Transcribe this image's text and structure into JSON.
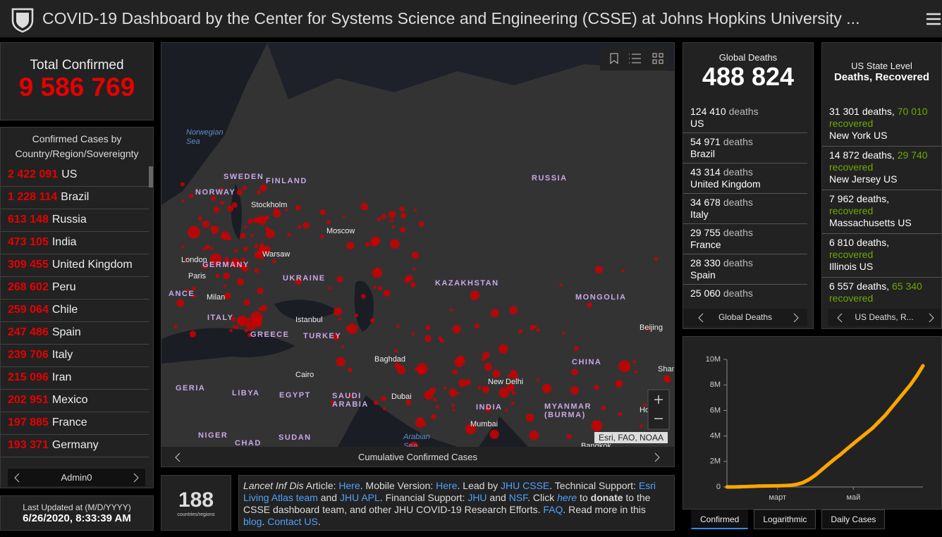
{
  "header": {
    "title": "COVID-19 Dashboard by the Center for Systems Science and Engineering (CSSE) at Johns Hopkins University ..."
  },
  "total": {
    "label": "Total Confirmed",
    "value": "9 586 769"
  },
  "country_list": {
    "title": "Confirmed Cases by Country/Region/Sovereignty",
    "footer": "Admin0",
    "rows": [
      {
        "count": "2 422 091",
        "name": "US"
      },
      {
        "count": "1 228 114",
        "name": "Brazil"
      },
      {
        "count": "613 148",
        "name": "Russia"
      },
      {
        "count": "473 105",
        "name": "India"
      },
      {
        "count": "309 455",
        "name": "United Kingdom"
      },
      {
        "count": "268 602",
        "name": "Peru"
      },
      {
        "count": "259 064",
        "name": "Chile"
      },
      {
        "count": "247 486",
        "name": "Spain"
      },
      {
        "count": "239 706",
        "name": "Italy"
      },
      {
        "count": "215 096",
        "name": "Iran"
      },
      {
        "count": "202 951",
        "name": "Mexico"
      },
      {
        "count": "197 885",
        "name": "France"
      },
      {
        "count": "193 371",
        "name": "Germany"
      }
    ]
  },
  "last_updated": {
    "label": "Last Updated at (M/D/YYYY)",
    "value": "6/26/2020, 8:33:39 AM"
  },
  "map": {
    "caption": "Cumulative Confirmed Cases",
    "attribution": "Esri, FAO, NOAA",
    "labels": [
      "Norwegian",
      "Sea",
      "SWEDEN",
      "FINLAND",
      "NORWAY",
      "RUSSIA",
      "Stockholm",
      "Moscow",
      "Warsaw",
      "London",
      "Paris",
      "GERMANY",
      "UKRAINE",
      "KAZAKHSTAN",
      "MONGOLIA",
      "Milan",
      "ITALY",
      "Istanbul",
      "GREECE",
      "TURKEY",
      "Baghdad",
      "Cairo",
      "LIBYA",
      "EGYPT",
      "SAUDI",
      "ARABIA",
      "Dubai",
      "New Delhi",
      "INDIA",
      "CHINA",
      "Beijing",
      "Shanghai",
      "Hong Ko",
      "MYANMAR",
      "(BURMA)",
      "Mumbai",
      "Bangkok",
      "Arabian",
      "Sea",
      "NIGER",
      "CHAD",
      "SUDAN",
      "GERIA",
      "ANCE"
    ]
  },
  "count_panel": {
    "value": "188",
    "label": "countries/regions"
  },
  "info": {
    "segments": [
      {
        "text": "Lancet Inf Dis",
        "style": "italic"
      },
      {
        "text": " Article: ",
        "style": "plain"
      },
      {
        "text": "Here",
        "style": "link"
      },
      {
        "text": ". Mobile Version: ",
        "style": "plain"
      },
      {
        "text": "Here",
        "style": "link"
      },
      {
        "text": ". Lead by ",
        "style": "plain"
      },
      {
        "text": "JHU CSSE",
        "style": "link"
      },
      {
        "text": ". Technical Support: ",
        "style": "plain"
      },
      {
        "text": "Esri Living Atlas team",
        "style": "link"
      },
      {
        "text": " and ",
        "style": "plain"
      },
      {
        "text": "JHU APL",
        "style": "link"
      },
      {
        "text": ". Financial Support: ",
        "style": "plain"
      },
      {
        "text": "JHU",
        "style": "link"
      },
      {
        "text": " and ",
        "style": "plain"
      },
      {
        "text": "NSF",
        "style": "link"
      },
      {
        "text": ". Click ",
        "style": "plain"
      },
      {
        "text": "here",
        "style": "link-italic"
      },
      {
        "text": " to ",
        "style": "plain"
      },
      {
        "text": "donate",
        "style": "bold"
      },
      {
        "text": " to the CSSE dashboard team, and other JHU COVID-19 Research Efforts. ",
        "style": "plain"
      },
      {
        "text": "FAQ",
        "style": "link"
      },
      {
        "text": ". Read more in this ",
        "style": "plain"
      },
      {
        "text": "blog",
        "style": "link"
      },
      {
        "text": ". ",
        "style": "plain"
      },
      {
        "text": "Contact US",
        "style": "link"
      },
      {
        "text": ".",
        "style": "plain"
      }
    ]
  },
  "global_deaths": {
    "title": "Global Deaths",
    "value": "488 824",
    "footer": "Global Deaths",
    "rows": [
      {
        "count": "124 410",
        "unit": "deaths",
        "name": "US"
      },
      {
        "count": "54 971",
        "unit": "deaths",
        "name": "Brazil"
      },
      {
        "count": "43 314",
        "unit": "deaths",
        "name": "United Kingdom"
      },
      {
        "count": "34 678",
        "unit": "deaths",
        "name": "Italy"
      },
      {
        "count": "29 755",
        "unit": "deaths",
        "name": "France"
      },
      {
        "count": "28 330",
        "unit": "deaths",
        "name": "Spain"
      },
      {
        "count": "25 060",
        "unit": "deaths"
      }
    ]
  },
  "us_state": {
    "title": "US State Level",
    "subtitle": "Deaths, Recovered",
    "footer": "US Deaths, R...",
    "rows": [
      {
        "deaths": "31 301",
        "unit": "deaths,",
        "recovered": "70 010",
        "recovered_label": "recovered",
        "name": "New York US"
      },
      {
        "deaths": "14 872",
        "unit": "deaths,",
        "recovered": "29 740",
        "recovered_label": "recovered",
        "name": "New Jersey US"
      },
      {
        "deaths": "7 962",
        "unit": "deaths,",
        "recovered_label": "recovered",
        "name": "Massachusetts US"
      },
      {
        "deaths": "6 810",
        "unit": "deaths,",
        "recovered_label": "recovered",
        "name": "Illinois US"
      },
      {
        "deaths": "6 557",
        "unit": "deaths,",
        "recovered": "65 340",
        "recovered_label": "recovered"
      }
    ]
  },
  "chart_data": {
    "type": "line",
    "color": "#ffa500",
    "categories": [
      null,
      null,
      null,
      null,
      null,
      null,
      null,
      null,
      "март",
      null,
      null,
      null,
      null,
      null,
      null,
      null,
      null,
      null,
      null,
      null,
      "май",
      null,
      null,
      null,
      null,
      null,
      null,
      null,
      null,
      null,
      null,
      null
    ],
    "values": [
      555,
      2900,
      12000,
      31000,
      45000,
      71000,
      77000,
      82000,
      90000,
      106000,
      128000,
      198000,
      337000,
      594000,
      932000,
      1350000,
      1770000,
      2180000,
      2560000,
      2990000,
      3400000,
      3800000,
      4200000,
      4600000,
      5100000,
      5600000,
      6200000,
      6800000,
      7400000,
      8000000,
      8700000,
      9500000
    ],
    "ylim": [
      0,
      10000000
    ],
    "yticks": [
      0,
      {
        "value": 2000000,
        "label": "2M"
      },
      {
        "value": 4000000,
        "label": "4M"
      },
      {
        "value": 6000000,
        "label": "6M"
      },
      {
        "value": 8000000,
        "label": "8M"
      },
      {
        "value": 10000000,
        "label": "10M"
      }
    ],
    "tabs": [
      "Confirmed",
      "Logarithmic",
      "Daily Cases"
    ],
    "active_tab": 0
  }
}
